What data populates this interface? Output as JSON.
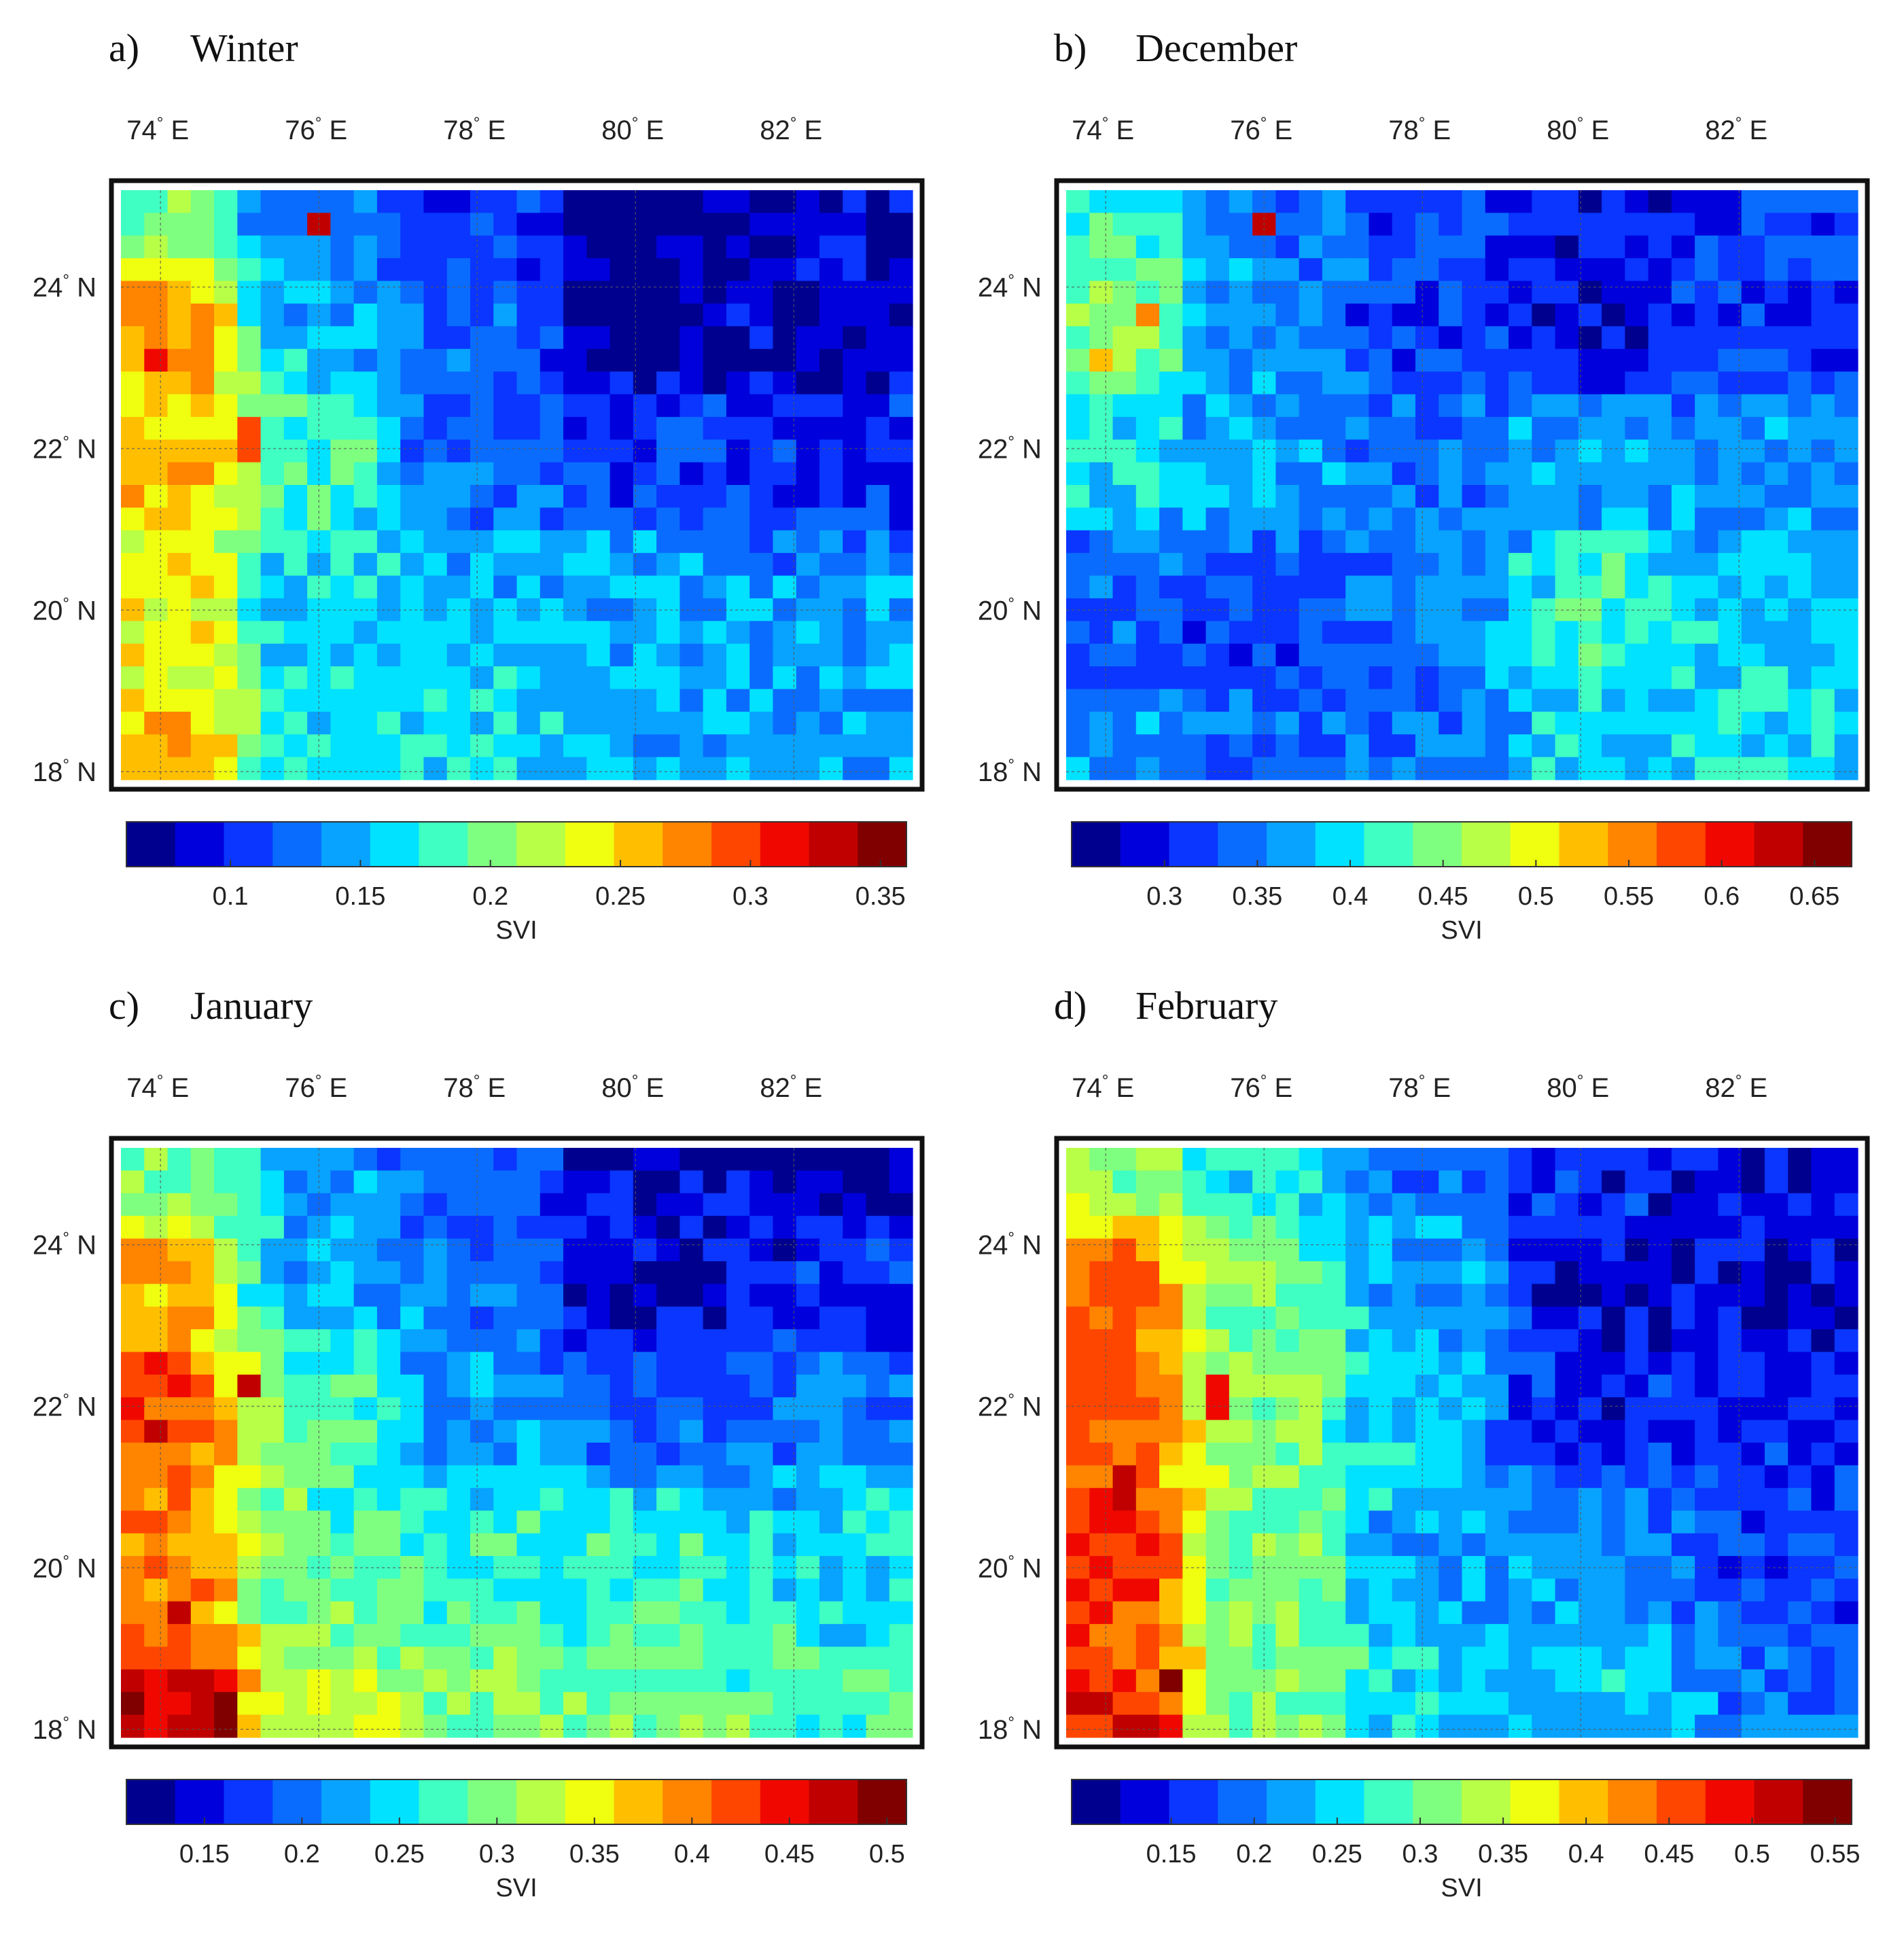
{
  "chart_data": [
    {
      "type": "heatmap",
      "letter": "a)",
      "title": "Winter",
      "x_ticks": [
        {
          "value": 74,
          "label": "74",
          "unit": "E"
        },
        {
          "value": 76,
          "label": "76",
          "unit": "E"
        },
        {
          "value": 78,
          "label": "78",
          "unit": "E"
        },
        {
          "value": 80,
          "label": "80",
          "unit": "E"
        },
        {
          "value": 82,
          "label": "82",
          "unit": "E"
        }
      ],
      "y_ticks": [
        {
          "value": 24,
          "label": "24",
          "unit": "N"
        },
        {
          "value": 22,
          "label": "22",
          "unit": "N"
        },
        {
          "value": 20,
          "label": "20",
          "unit": "N"
        },
        {
          "value": 18,
          "label": "18",
          "unit": "N"
        }
      ],
      "xlim": [
        73.5,
        83.5
      ],
      "ylim": [
        17.9,
        25.2
      ],
      "colorbar": {
        "label": "SVI",
        "min": 0.06,
        "max": 0.36,
        "ticks": [
          "0.1",
          "0.15",
          "0.2",
          "0.25",
          "0.3",
          "0.35"
        ]
      },
      "control_points": [
        {
          "lon": 74.0,
          "lat": 25.0,
          "v": 0.2
        },
        {
          "lon": 76.0,
          "lat": 25.0,
          "v": 0.13
        },
        {
          "lon": 78.0,
          "lat": 25.0,
          "v": 0.1
        },
        {
          "lon": 80.0,
          "lat": 25.0,
          "v": 0.08
        },
        {
          "lon": 83.2,
          "lat": 25.0,
          "v": 0.09
        },
        {
          "lon": 74.0,
          "lat": 23.5,
          "v": 0.27
        },
        {
          "lon": 76.0,
          "lat": 23.5,
          "v": 0.15
        },
        {
          "lon": 78.0,
          "lat": 23.5,
          "v": 0.12
        },
        {
          "lon": 80.0,
          "lat": 23.5,
          "v": 0.07
        },
        {
          "lon": 83.2,
          "lat": 23.5,
          "v": 0.08
        },
        {
          "lon": 74.0,
          "lat": 22.0,
          "v": 0.26
        },
        {
          "lon": 76.0,
          "lat": 22.0,
          "v": 0.18
        },
        {
          "lon": 78.0,
          "lat": 22.0,
          "v": 0.12
        },
        {
          "lon": 80.0,
          "lat": 22.0,
          "v": 0.11
        },
        {
          "lon": 83.2,
          "lat": 22.0,
          "v": 0.1
        },
        {
          "lon": 74.0,
          "lat": 20.0,
          "v": 0.24
        },
        {
          "lon": 76.0,
          "lat": 20.0,
          "v": 0.16
        },
        {
          "lon": 78.0,
          "lat": 20.0,
          "v": 0.15
        },
        {
          "lon": 80.0,
          "lat": 20.0,
          "v": 0.15
        },
        {
          "lon": 83.2,
          "lat": 20.0,
          "v": 0.14
        },
        {
          "lon": 74.0,
          "lat": 18.0,
          "v": 0.26
        },
        {
          "lon": 76.0,
          "lat": 18.0,
          "v": 0.17
        },
        {
          "lon": 78.0,
          "lat": 18.0,
          "v": 0.16
        },
        {
          "lon": 80.0,
          "lat": 18.0,
          "v": 0.15
        },
        {
          "lon": 83.2,
          "lat": 18.0,
          "v": 0.14
        }
      ],
      "hotspots": [
        {
          "lon": 74.0,
          "lat": 23.0,
          "v": 0.31
        },
        {
          "lon": 75.0,
          "lat": 22.1,
          "v": 0.29
        },
        {
          "lon": 76.0,
          "lat": 24.8,
          "v": 0.34
        },
        {
          "lon": 74.4,
          "lat": 23.6,
          "v": 0.28
        }
      ]
    },
    {
      "type": "heatmap",
      "letter": "b)",
      "title": "December",
      "x_ticks": [
        {
          "value": 74,
          "label": "74",
          "unit": "E"
        },
        {
          "value": 76,
          "label": "76",
          "unit": "E"
        },
        {
          "value": 78,
          "label": "78",
          "unit": "E"
        },
        {
          "value": 80,
          "label": "80",
          "unit": "E"
        },
        {
          "value": 82,
          "label": "82",
          "unit": "E"
        }
      ],
      "y_ticks": [
        {
          "value": 24,
          "label": "24",
          "unit": "N"
        },
        {
          "value": 22,
          "label": "22",
          "unit": "N"
        },
        {
          "value": 20,
          "label": "20",
          "unit": "N"
        },
        {
          "value": 18,
          "label": "18",
          "unit": "N"
        }
      ],
      "xlim": [
        73.5,
        83.5
      ],
      "ylim": [
        17.9,
        25.2
      ],
      "colorbar": {
        "label": "SVI",
        "min": 0.25,
        "max": 0.67,
        "ticks": [
          "0.3",
          "0.35",
          "0.4",
          "0.45",
          "0.5",
          "0.55",
          "0.6",
          "0.65"
        ]
      },
      "control_points": [
        {
          "lon": 74.0,
          "lat": 25.0,
          "v": 0.42
        },
        {
          "lon": 76.0,
          "lat": 25.0,
          "v": 0.35
        },
        {
          "lon": 78.0,
          "lat": 25.0,
          "v": 0.32
        },
        {
          "lon": 80.0,
          "lat": 25.0,
          "v": 0.29
        },
        {
          "lon": 83.2,
          "lat": 25.0,
          "v": 0.33
        },
        {
          "lon": 74.0,
          "lat": 23.5,
          "v": 0.46
        },
        {
          "lon": 76.0,
          "lat": 23.5,
          "v": 0.36
        },
        {
          "lon": 78.0,
          "lat": 23.5,
          "v": 0.32
        },
        {
          "lon": 80.0,
          "lat": 23.5,
          "v": 0.29
        },
        {
          "lon": 83.2,
          "lat": 23.5,
          "v": 0.31
        },
        {
          "lon": 74.0,
          "lat": 22.0,
          "v": 0.4
        },
        {
          "lon": 76.0,
          "lat": 22.0,
          "v": 0.37
        },
        {
          "lon": 78.0,
          "lat": 22.0,
          "v": 0.34
        },
        {
          "lon": 80.0,
          "lat": 22.0,
          "v": 0.37
        },
        {
          "lon": 83.2,
          "lat": 22.0,
          "v": 0.36
        },
        {
          "lon": 74.0,
          "lat": 20.0,
          "v": 0.33
        },
        {
          "lon": 76.0,
          "lat": 20.0,
          "v": 0.32
        },
        {
          "lon": 78.0,
          "lat": 20.0,
          "v": 0.35
        },
        {
          "lon": 80.0,
          "lat": 20.0,
          "v": 0.41
        },
        {
          "lon": 83.2,
          "lat": 20.0,
          "v": 0.38
        },
        {
          "lon": 74.0,
          "lat": 18.0,
          "v": 0.37
        },
        {
          "lon": 76.0,
          "lat": 18.0,
          "v": 0.33
        },
        {
          "lon": 78.0,
          "lat": 18.0,
          "v": 0.34
        },
        {
          "lon": 80.0,
          "lat": 18.0,
          "v": 0.39
        },
        {
          "lon": 83.2,
          "lat": 18.0,
          "v": 0.4
        }
      ],
      "hotspots": [
        {
          "lon": 76.0,
          "lat": 24.8,
          "v": 0.64
        },
        {
          "lon": 74.4,
          "lat": 23.6,
          "v": 0.55
        },
        {
          "lon": 74.0,
          "lat": 23.2,
          "v": 0.53
        }
      ]
    },
    {
      "type": "heatmap",
      "letter": "c)",
      "title": "January",
      "x_ticks": [
        {
          "value": 74,
          "label": "74",
          "unit": "E"
        },
        {
          "value": 76,
          "label": "76",
          "unit": "E"
        },
        {
          "value": 78,
          "label": "78",
          "unit": "E"
        },
        {
          "value": 80,
          "label": "80",
          "unit": "E"
        },
        {
          "value": 82,
          "label": "82",
          "unit": "E"
        }
      ],
      "y_ticks": [
        {
          "value": 24,
          "label": "24",
          "unit": "N"
        },
        {
          "value": 22,
          "label": "22",
          "unit": "N"
        },
        {
          "value": 20,
          "label": "20",
          "unit": "N"
        },
        {
          "value": 18,
          "label": "18",
          "unit": "N"
        }
      ],
      "xlim": [
        73.5,
        83.5
      ],
      "ylim": [
        17.9,
        25.2
      ],
      "colorbar": {
        "label": "SVI",
        "min": 0.11,
        "max": 0.51,
        "ticks": [
          "0.15",
          "0.2",
          "0.25",
          "0.3",
          "0.35",
          "0.4",
          "0.45",
          "0.5"
        ]
      },
      "control_points": [
        {
          "lon": 74.0,
          "lat": 25.0,
          "v": 0.3
        },
        {
          "lon": 76.0,
          "lat": 25.0,
          "v": 0.22
        },
        {
          "lon": 78.0,
          "lat": 25.0,
          "v": 0.18
        },
        {
          "lon": 80.0,
          "lat": 25.0,
          "v": 0.14
        },
        {
          "lon": 83.2,
          "lat": 25.0,
          "v": 0.13
        },
        {
          "lon": 74.0,
          "lat": 23.5,
          "v": 0.38
        },
        {
          "lon": 76.0,
          "lat": 23.5,
          "v": 0.23
        },
        {
          "lon": 78.0,
          "lat": 23.5,
          "v": 0.2
        },
        {
          "lon": 80.0,
          "lat": 23.5,
          "v": 0.14
        },
        {
          "lon": 83.2,
          "lat": 23.5,
          "v": 0.17
        },
        {
          "lon": 74.0,
          "lat": 22.0,
          "v": 0.42
        },
        {
          "lon": 76.0,
          "lat": 22.0,
          "v": 0.28
        },
        {
          "lon": 78.0,
          "lat": 22.0,
          "v": 0.21
        },
        {
          "lon": 80.0,
          "lat": 22.0,
          "v": 0.19
        },
        {
          "lon": 83.2,
          "lat": 22.0,
          "v": 0.2
        },
        {
          "lon": 74.0,
          "lat": 20.0,
          "v": 0.4
        },
        {
          "lon": 76.0,
          "lat": 20.0,
          "v": 0.28
        },
        {
          "lon": 78.0,
          "lat": 20.0,
          "v": 0.27
        },
        {
          "lon": 80.0,
          "lat": 20.0,
          "v": 0.27
        },
        {
          "lon": 83.2,
          "lat": 20.0,
          "v": 0.25
        },
        {
          "lon": 74.0,
          "lat": 18.0,
          "v": 0.47
        },
        {
          "lon": 76.0,
          "lat": 18.0,
          "v": 0.33
        },
        {
          "lon": 78.0,
          "lat": 18.0,
          "v": 0.3
        },
        {
          "lon": 80.0,
          "lat": 18.0,
          "v": 0.29
        },
        {
          "lon": 83.2,
          "lat": 18.0,
          "v": 0.27
        }
      ],
      "hotspots": [
        {
          "lon": 74.8,
          "lat": 18.2,
          "v": 0.49
        },
        {
          "lon": 74.0,
          "lat": 21.7,
          "v": 0.48
        },
        {
          "lon": 75.0,
          "lat": 22.2,
          "v": 0.47
        },
        {
          "lon": 74.3,
          "lat": 19.5,
          "v": 0.46
        }
      ]
    },
    {
      "type": "heatmap",
      "letter": "d)",
      "title": "February",
      "x_ticks": [
        {
          "value": 74,
          "label": "74",
          "unit": "E"
        },
        {
          "value": 76,
          "label": "76",
          "unit": "E"
        },
        {
          "value": 78,
          "label": "78",
          "unit": "E"
        },
        {
          "value": 80,
          "label": "80",
          "unit": "E"
        },
        {
          "value": 82,
          "label": "82",
          "unit": "E"
        }
      ],
      "y_ticks": [
        {
          "value": 24,
          "label": "24",
          "unit": "N"
        },
        {
          "value": 22,
          "label": "22",
          "unit": "N"
        },
        {
          "value": 20,
          "label": "20",
          "unit": "N"
        },
        {
          "value": 18,
          "label": "18",
          "unit": "N"
        }
      ],
      "xlim": [
        73.5,
        83.5
      ],
      "ylim": [
        17.9,
        25.2
      ],
      "colorbar": {
        "label": "SVI",
        "min": 0.09,
        "max": 0.56,
        "ticks": [
          "0.15",
          "0.2",
          "0.25",
          "0.3",
          "0.35",
          "0.4",
          "0.45",
          "0.5",
          "0.55"
        ]
      },
      "control_points": [
        {
          "lon": 74.0,
          "lat": 25.0,
          "v": 0.32
        },
        {
          "lon": 76.0,
          "lat": 25.0,
          "v": 0.26
        },
        {
          "lon": 78.0,
          "lat": 25.0,
          "v": 0.2
        },
        {
          "lon": 80.0,
          "lat": 25.0,
          "v": 0.15
        },
        {
          "lon": 83.2,
          "lat": 25.0,
          "v": 0.13
        },
        {
          "lon": 74.0,
          "lat": 23.5,
          "v": 0.44
        },
        {
          "lon": 76.0,
          "lat": 23.5,
          "v": 0.3
        },
        {
          "lon": 78.0,
          "lat": 23.5,
          "v": 0.22
        },
        {
          "lon": 80.0,
          "lat": 23.5,
          "v": 0.12
        },
        {
          "lon": 83.2,
          "lat": 23.5,
          "v": 0.13
        },
        {
          "lon": 74.0,
          "lat": 22.0,
          "v": 0.46
        },
        {
          "lon": 76.0,
          "lat": 22.0,
          "v": 0.32
        },
        {
          "lon": 78.0,
          "lat": 22.0,
          "v": 0.24
        },
        {
          "lon": 80.0,
          "lat": 22.0,
          "v": 0.15
        },
        {
          "lon": 83.2,
          "lat": 22.0,
          "v": 0.15
        },
        {
          "lon": 74.0,
          "lat": 20.0,
          "v": 0.47
        },
        {
          "lon": 76.0,
          "lat": 20.0,
          "v": 0.31
        },
        {
          "lon": 78.0,
          "lat": 20.0,
          "v": 0.22
        },
        {
          "lon": 80.0,
          "lat": 20.0,
          "v": 0.21
        },
        {
          "lon": 83.2,
          "lat": 20.0,
          "v": 0.17
        },
        {
          "lon": 74.0,
          "lat": 18.0,
          "v": 0.49
        },
        {
          "lon": 76.0,
          "lat": 18.0,
          "v": 0.31
        },
        {
          "lon": 78.0,
          "lat": 18.0,
          "v": 0.25
        },
        {
          "lon": 80.0,
          "lat": 18.0,
          "v": 0.24
        },
        {
          "lon": 83.2,
          "lat": 18.0,
          "v": 0.19
        }
      ],
      "hotspots": [
        {
          "lon": 74.8,
          "lat": 18.6,
          "v": 0.54
        },
        {
          "lon": 74.2,
          "lat": 21.0,
          "v": 0.52
        },
        {
          "lon": 75.5,
          "lat": 22.1,
          "v": 0.5
        }
      ]
    }
  ]
}
